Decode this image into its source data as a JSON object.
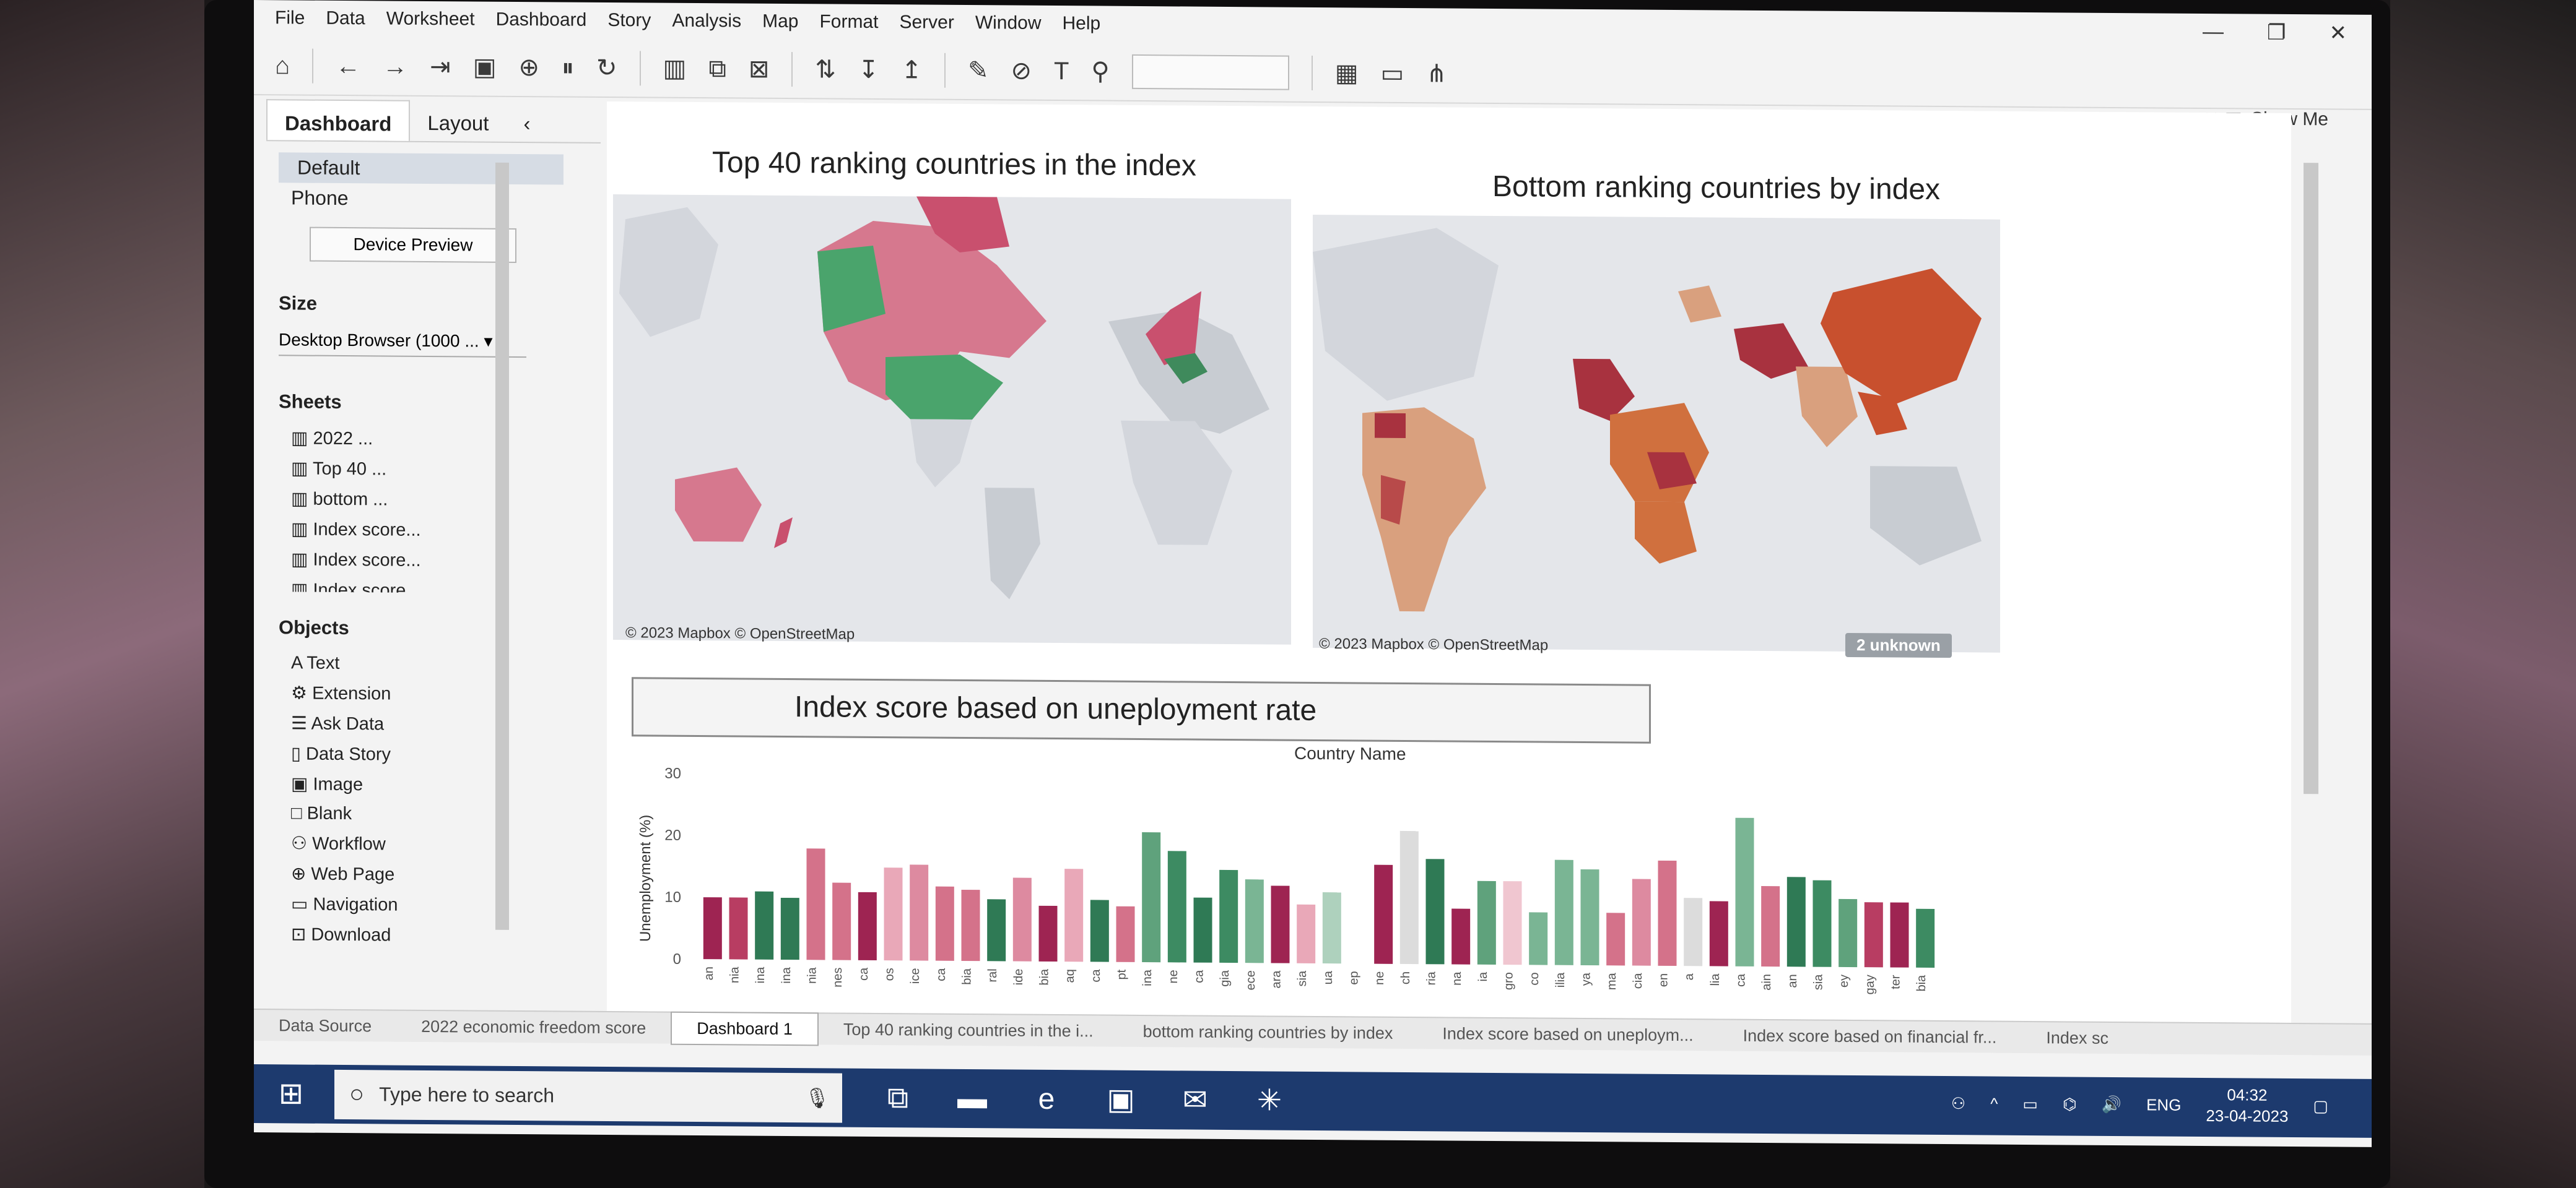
{
  "menu": [
    "File",
    "Data",
    "Worksheet",
    "Dashboard",
    "Story",
    "Analysis",
    "Map",
    "Format",
    "Server",
    "Window",
    "Help"
  ],
  "window_controls": [
    "—",
    "❐",
    "✕"
  ],
  "toolbar": {
    "show_me": "Show Me"
  },
  "left_pane": {
    "tabs": [
      "Dashboard",
      "Layout"
    ],
    "devices": [
      "Default",
      "Phone"
    ],
    "device_preview": "Device Preview",
    "size_label": "Size",
    "size_value": "Desktop Browser (1000 ...",
    "sheets_label": "Sheets",
    "sheets": [
      "2022 ...",
      "Top 40 ...",
      "bottom ...",
      "Index score...",
      "Index score...",
      "Index score..."
    ],
    "objects_label": "Objects",
    "objects": [
      "Text",
      "Extension",
      "Ask Data",
      "Data Story",
      "Image",
      "Blank",
      "Workflow",
      "Web Page",
      "Navigation",
      "Download"
    ]
  },
  "dashboard": {
    "map1_title": "Top 40 ranking  countries in the index",
    "map2_title": "Bottom ranking countries by index",
    "attribution": "© 2023 Mapbox © OpenStreetMap",
    "unknown_badge": "2 unknown",
    "bar_title": "Index score based on uneployment rate",
    "country_header": "Country Name"
  },
  "chart_data": {
    "type": "bar",
    "ylabel": "Unemployment (%)",
    "ylim": [
      0,
      30
    ],
    "yticks": [
      0,
      10,
      20,
      30
    ],
    "xlabel": "",
    "categories": [
      "an",
      "nia",
      "ina",
      "ina",
      "nia",
      "nes",
      "ca",
      "os",
      "ice",
      "ca",
      "bia",
      "ral",
      "ide",
      "bia",
      "aq",
      "ca",
      "pt",
      "ina",
      "ne",
      "ca",
      "gia",
      "ece",
      "ara",
      "sia",
      "ua",
      "ep",
      "ne",
      "ch",
      "ria",
      "na",
      "ia",
      "gro",
      "co",
      "ilia",
      "ya",
      "ma",
      "cia",
      "en",
      "a",
      "lia",
      "ca",
      "ain",
      "an",
      "sia",
      "ey",
      "gay",
      "ter",
      "bia"
    ],
    "values": [
      10,
      10,
      11,
      10,
      18,
      12.5,
      11,
      15,
      15.5,
      12,
      11.5,
      10,
      13.5,
      9,
      15,
      10,
      9,
      21,
      18,
      10.5,
      15,
      13.5,
      12.5,
      9.5,
      11.5,
      0,
      16,
      21.5,
      17,
      9,
      13.5,
      13.5,
      8.5,
      17,
      15.5,
      8.5,
      14,
      17,
      11,
      10.5,
      24,
      13,
      14.5,
      14,
      11,
      10.5,
      10.5,
      9.5
    ],
    "colors": [
      "#9e2452",
      "#b83d62",
      "#2f7a55",
      "#2f7a55",
      "#d4728a",
      "#d4728a",
      "#9e2452",
      "#e9a8b8",
      "#dd8aa0",
      "#d4728a",
      "#d4728a",
      "#2f7a55",
      "#dd8aa0",
      "#9e2452",
      "#e9a8b8",
      "#2f7a55",
      "#d4728a",
      "#5fa27c",
      "#3d8b62",
      "#2f7a55",
      "#3d8b62",
      "#7ab594",
      "#9e2452",
      "#e9a8b8",
      "#aed1bd",
      "#2f7a55",
      "#9e2452",
      "#dcdcdc",
      "#2f7a55",
      "#9e2452",
      "#5fa27c",
      "#f0c6d0",
      "#7ab594",
      "#7ab594",
      "#7ab594",
      "#d4728a",
      "#dd8aa0",
      "#d4728a",
      "#dcdcdc",
      "#9e2452",
      "#7ab594",
      "#d4728a",
      "#2f7a55",
      "#3d8b62",
      "#5fa27c",
      "#b83d62",
      "#9e2452",
      "#3d8b62"
    ]
  },
  "sheet_tabs": [
    "Data Source",
    "2022 economic freedom score",
    "Dashboard 1",
    "Top 40 ranking countries in the i...",
    "bottom ranking countries by index",
    "Index score based on uneploym...",
    "Index score based on financial fr...",
    "Index sc"
  ],
  "taskbar": {
    "search_placeholder": "Type here to search",
    "lang": "ENG",
    "time": "04:32",
    "date": "23-04-2023"
  }
}
